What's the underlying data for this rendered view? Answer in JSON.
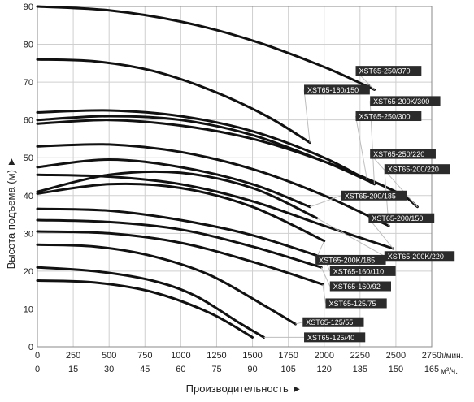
{
  "chart_data": {
    "type": "line",
    "xlabel": "Производительность ►",
    "ylabel": "Высота подъема (м) ►",
    "x_unit_primary": "л/мин.",
    "x_unit_secondary": "м³/ч.",
    "xlim": [
      0,
      2750
    ],
    "ylim": [
      0,
      90
    ],
    "x_ticks_lpm": [
      "0",
      "250",
      "500",
      "750",
      "1000",
      "1250",
      "1500",
      "1750",
      "2000",
      "2250",
      "2500",
      "2750"
    ],
    "x_ticks_m3h": [
      "0",
      "15",
      "30",
      "45",
      "60",
      "75",
      "90",
      "105",
      "120",
      "135",
      "150",
      "165"
    ],
    "y_ticks": [
      "0",
      "10",
      "20",
      "30",
      "40",
      "50",
      "60",
      "70",
      "80",
      "90"
    ],
    "grid": true,
    "series": [
      {
        "name": "XST65-250/370",
        "x": [
          0,
          500,
          1000,
          1500,
          2000,
          2350
        ],
        "y": [
          90,
          89,
          86,
          81,
          74,
          68
        ],
        "label_at": [
          2220,
          73
        ]
      },
      {
        "name": "XST65-160/150",
        "x": [
          0,
          400,
          800,
          1200,
          1600,
          1900
        ],
        "y": [
          76,
          75.5,
          73,
          68,
          61,
          54
        ],
        "label_at": [
          1860,
          68
        ]
      },
      {
        "name": "XST65-200K/300",
        "x": [
          0,
          500,
          1000,
          1500,
          2000,
          2350
        ],
        "y": [
          62,
          62.5,
          61,
          57,
          50,
          43
        ],
        "label_at": [
          2320,
          65
        ]
      },
      {
        "name": "XST65-250/300",
        "x": [
          0,
          500,
          1000,
          1500,
          2000,
          2300
        ],
        "y": [
          60,
          61,
          60,
          56,
          49,
          44
        ],
        "label_at": [
          2220,
          61
        ]
      },
      {
        "name": "XST65-250/220",
        "x": [
          0,
          500,
          1000,
          1500,
          2000,
          2500,
          2650
        ],
        "y": [
          59,
          60,
          58.5,
          55,
          49,
          41,
          37
        ],
        "label_at": [
          2320,
          51
        ]
      },
      {
        "name": "XST65-200/220",
        "x": [
          0,
          500,
          1000,
          1500,
          2000,
          2450
        ],
        "y": [
          53,
          53.5,
          51.5,
          47,
          40,
          32
        ],
        "label_at": [
          2420,
          47
        ]
      },
      {
        "name": "XST65-200/185",
        "x": [
          0,
          500,
          1000,
          1500,
          1900
        ],
        "y": [
          47.5,
          49.5,
          47.5,
          43,
          37
        ],
        "label_at": [
          2120,
          40
        ]
      },
      {
        "name": "XST65-200/150",
        "x": [
          0,
          500,
          1000,
          1500,
          2000,
          2480
        ],
        "y": [
          45.5,
          45,
          43,
          38.5,
          32,
          26
        ],
        "label_at": [
          2310,
          34
        ]
      },
      {
        "name": "XST65-200K/220",
        "x": [
          0,
          500,
          1000,
          1500,
          1950
        ],
        "y": [
          41,
          45.5,
          46,
          42,
          34
        ],
        "label_at": [
          2420,
          24
        ]
      },
      {
        "name": "XST65-200K/185",
        "x": [
          0,
          500,
          1000,
          1500,
          2000
        ],
        "y": [
          40.5,
          43,
          42,
          37,
          28
        ],
        "label_at": [
          1940,
          23
        ]
      },
      {
        "name": "XST65-160/110",
        "x": [
          0,
          500,
          1000,
          1500,
          2000
        ],
        "y": [
          36.5,
          36,
          33.5,
          29.5,
          23.5
        ],
        "label_at": [
          2040,
          20
        ]
      },
      {
        "name": "XST65-160/92",
        "x": [
          0,
          500,
          1000,
          1500,
          1980
        ],
        "y": [
          33.5,
          33,
          31,
          26.5,
          21
        ],
        "label_at": [
          2040,
          16
        ]
      },
      {
        "name": "XST65-125/75",
        "x": [
          0,
          500,
          1000,
          1500,
          1990
        ],
        "y": [
          30.5,
          30,
          27.5,
          22.5,
          16.5
        ],
        "label_at": [
          2010,
          11.5
        ]
      },
      {
        "name": "XST65-125/55",
        "x": [
          0,
          400,
          800,
          1200,
          1600,
          1800
        ],
        "y": [
          27,
          26.5,
          24,
          19,
          10.5,
          6
        ],
        "label_at": [
          1850,
          6.5
        ]
      },
      {
        "name": "XST65-125/40",
        "x": [
          0,
          400,
          800,
          1100,
          1400,
          1580
        ],
        "y": [
          21,
          20,
          17.5,
          13.5,
          6.5,
          2.5
        ],
        "label_at": [
          1860,
          2.5
        ]
      },
      {
        "name": "",
        "x": [
          0,
          400,
          800,
          1200,
          1500
        ],
        "y": [
          17.5,
          17,
          14.5,
          9,
          2.5
        ]
      }
    ]
  }
}
